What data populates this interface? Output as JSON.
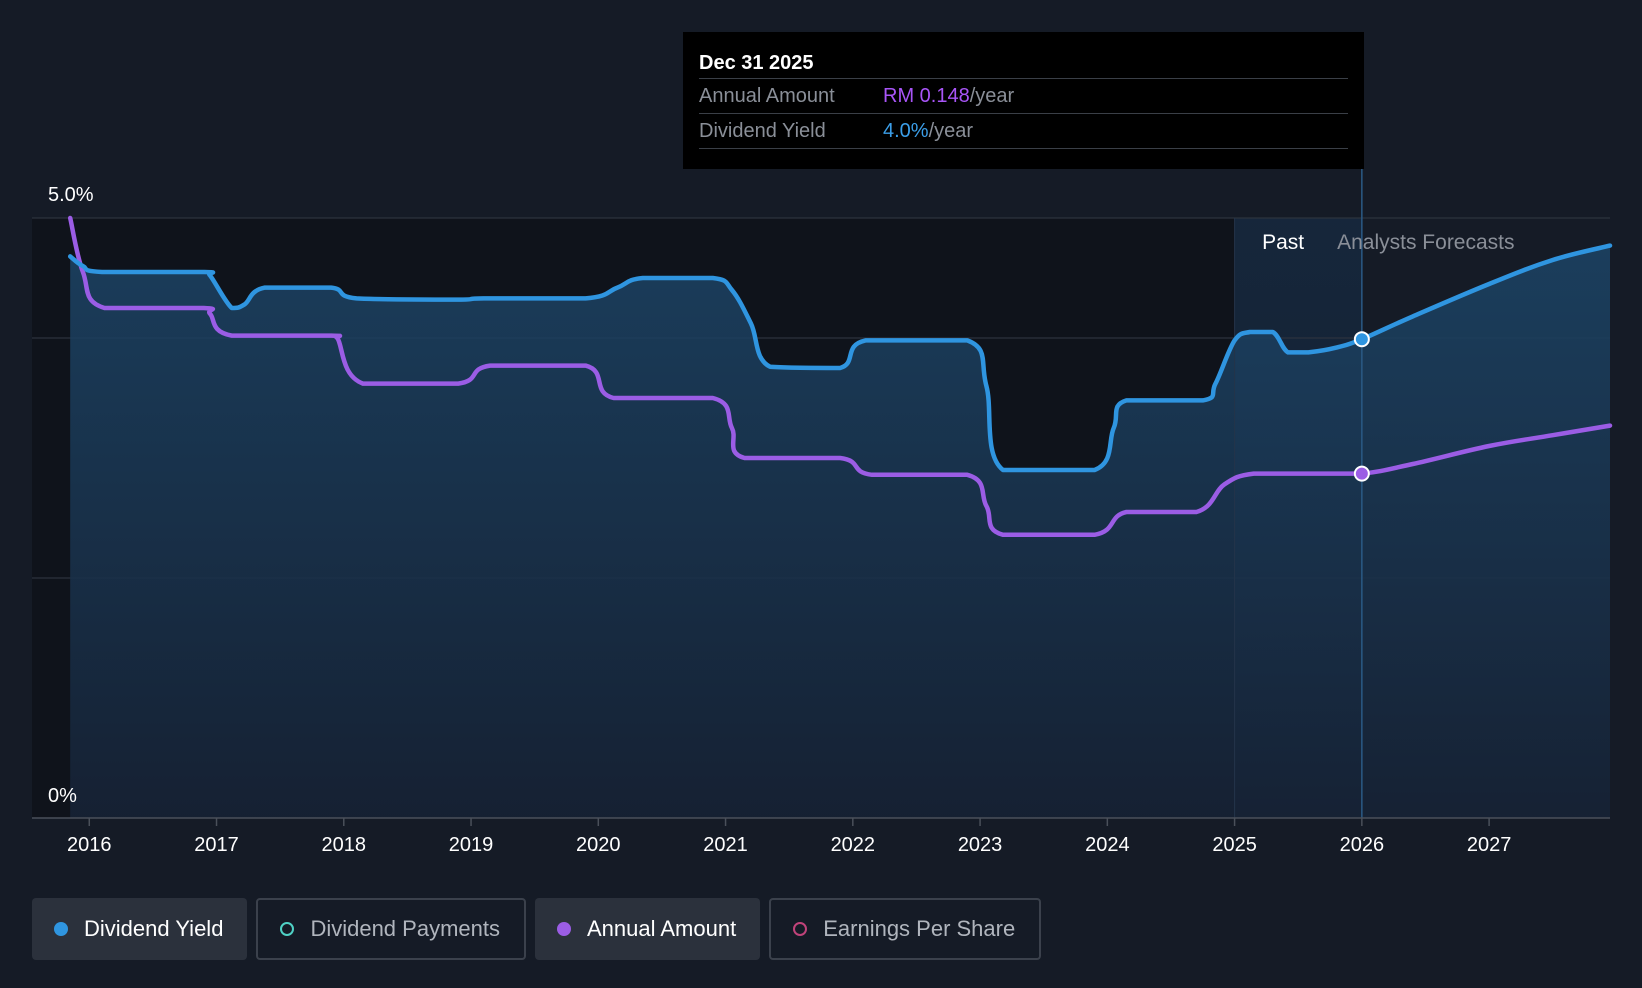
{
  "tooltip": {
    "date": "Dec 31 2025",
    "rows": [
      {
        "label": "Annual Amount",
        "value": "RM 0.148",
        "unit": "/year"
      },
      {
        "label": "Dividend Yield",
        "value": "4.0%",
        "unit": "/year"
      }
    ]
  },
  "chart_data": {
    "type": "line",
    "y_tick_labels": [
      "5.0%",
      "0%"
    ],
    "ylim": [
      0,
      5.0
    ],
    "xlim": [
      2015.55,
      2027.95
    ],
    "x_ticks": [
      2016,
      2017,
      2018,
      2019,
      2020,
      2021,
      2022,
      2023,
      2024,
      2025,
      2026,
      2027
    ],
    "x_tick_labels": [
      "2016",
      "2017",
      "2018",
      "2019",
      "2020",
      "2021",
      "2022",
      "2023",
      "2024",
      "2025",
      "2026",
      "2027"
    ],
    "gridlines": [
      5.0,
      4.0,
      2.0
    ],
    "regions": {
      "past_label": "Past",
      "forecast_label": "Analysts Forecasts",
      "past_start": 2025.0,
      "forecast_start": 2025.68,
      "marker_x": 2026.0
    },
    "series": [
      {
        "name": "Dividend Yield",
        "color": "#2f95e0",
        "points": [
          [
            2015.85,
            4.68
          ],
          [
            2015.95,
            4.6
          ],
          [
            2016.1,
            4.55
          ],
          [
            2016.9,
            4.55
          ],
          [
            2016.95,
            4.52
          ],
          [
            2017.12,
            4.25
          ],
          [
            2017.22,
            4.28
          ],
          [
            2017.38,
            4.42
          ],
          [
            2017.9,
            4.42
          ],
          [
            2018.1,
            4.33
          ],
          [
            2018.9,
            4.32
          ],
          [
            2019.1,
            4.33
          ],
          [
            2019.9,
            4.33
          ],
          [
            2020.15,
            4.42
          ],
          [
            2020.35,
            4.5
          ],
          [
            2020.9,
            4.5
          ],
          [
            2021.05,
            4.4
          ],
          [
            2021.2,
            4.12
          ],
          [
            2021.35,
            3.76
          ],
          [
            2021.9,
            3.75
          ],
          [
            2022.1,
            3.98
          ],
          [
            2022.9,
            3.98
          ],
          [
            2023.05,
            3.6
          ],
          [
            2023.18,
            2.9
          ],
          [
            2023.9,
            2.9
          ],
          [
            2024.05,
            3.25
          ],
          [
            2024.15,
            3.48
          ],
          [
            2024.75,
            3.48
          ],
          [
            2024.85,
            3.62
          ],
          [
            2025.0,
            3.98
          ],
          [
            2025.12,
            4.05
          ],
          [
            2025.3,
            4.05
          ],
          [
            2025.42,
            3.88
          ],
          [
            2025.58,
            3.88
          ],
          [
            2025.8,
            3.92
          ],
          [
            2026.0,
            3.99
          ],
          [
            2026.4,
            4.18
          ],
          [
            2027.0,
            4.45
          ],
          [
            2027.5,
            4.65
          ],
          [
            2027.95,
            4.77
          ]
        ]
      },
      {
        "name": "Annual Amount",
        "color": "#9b5de5",
        "points": [
          [
            2015.85,
            5.0
          ],
          [
            2015.95,
            4.55
          ],
          [
            2016.12,
            4.25
          ],
          [
            2016.9,
            4.25
          ],
          [
            2016.95,
            4.2
          ],
          [
            2017.12,
            4.02
          ],
          [
            2017.9,
            4.02
          ],
          [
            2017.95,
            4.0
          ],
          [
            2018.15,
            3.62
          ],
          [
            2018.9,
            3.62
          ],
          [
            2019.15,
            3.77
          ],
          [
            2019.9,
            3.77
          ],
          [
            2020.12,
            3.5
          ],
          [
            2020.9,
            3.5
          ],
          [
            2021.05,
            3.25
          ],
          [
            2021.15,
            3.0
          ],
          [
            2021.9,
            3.0
          ],
          [
            2022.15,
            2.86
          ],
          [
            2022.9,
            2.86
          ],
          [
            2023.05,
            2.6
          ],
          [
            2023.18,
            2.36
          ],
          [
            2023.9,
            2.36
          ],
          [
            2024.15,
            2.55
          ],
          [
            2024.7,
            2.55
          ],
          [
            2024.92,
            2.78
          ],
          [
            2025.15,
            2.87
          ],
          [
            2025.6,
            2.87
          ],
          [
            2026.0,
            2.87
          ],
          [
            2026.4,
            2.95
          ],
          [
            2027.0,
            3.1
          ],
          [
            2027.5,
            3.19
          ],
          [
            2027.95,
            3.27
          ]
        ]
      }
    ],
    "legend": [
      {
        "label": "Dividend Yield",
        "active": true,
        "color": "#2f95e0",
        "hollow": false
      },
      {
        "label": "Dividend Payments",
        "active": false,
        "color": "#4fd1c5",
        "hollow": true
      },
      {
        "label": "Annual Amount",
        "active": true,
        "color": "#9b5de5",
        "hollow": false
      },
      {
        "label": "Earnings Per Share",
        "active": false,
        "color": "#c0437a",
        "hollow": true
      }
    ]
  }
}
